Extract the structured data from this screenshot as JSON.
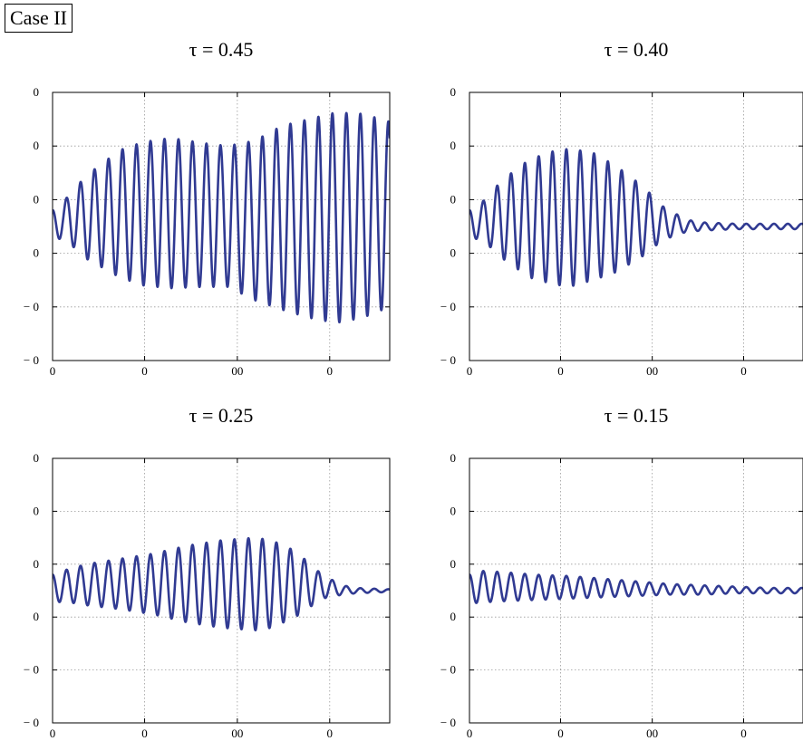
{
  "case_label": "Case II",
  "chart_data": [
    {
      "type": "line",
      "title": "τ = 0.45",
      "xlabel": "",
      "ylabel": "",
      "xticks": [
        "0",
        "0",
        "00",
        "0"
      ],
      "yticks": [
        "0",
        "0",
        "0",
        "0",
        "− 0",
        "− 0"
      ],
      "grid": true,
      "color": "#303a92",
      "xlim": [
        0,
        100
      ],
      "ylim": [
        -1,
        1
      ],
      "period": 4.15,
      "envelope": {
        "x": [
          0,
          3,
          10,
          20,
          27,
          35,
          45,
          52,
          60,
          68,
          76,
          84,
          92,
          100
        ],
        "upper": [
          0.12,
          0.18,
          0.38,
          0.57,
          0.63,
          0.66,
          0.62,
          0.6,
          0.64,
          0.75,
          0.8,
          0.85,
          0.84,
          0.78
        ],
        "lower": [
          -0.12,
          -0.08,
          -0.24,
          -0.38,
          -0.44,
          -0.46,
          -0.45,
          -0.45,
          -0.55,
          -0.62,
          -0.68,
          -0.72,
          -0.68,
          -0.6
        ]
      }
    },
    {
      "type": "line",
      "title": "τ = 0.40",
      "xlabel": "",
      "ylabel": "",
      "xticks": [
        "0",
        "0",
        "00",
        "0"
      ],
      "yticks": [
        "0",
        "0",
        "0",
        "0",
        "− 0",
        "− 0"
      ],
      "grid": true,
      "color": "#303a92",
      "xlim": [
        0,
        100
      ],
      "ylim": [
        -1,
        1
      ],
      "period": 4.15,
      "envelope": {
        "x": [
          0,
          3,
          10,
          18,
          25,
          30,
          37,
          44,
          52,
          58,
          65,
          70,
          80,
          90,
          100
        ],
        "upper": [
          0.12,
          0.16,
          0.35,
          0.5,
          0.56,
          0.58,
          0.55,
          0.45,
          0.3,
          0.15,
          0.05,
          0.03,
          0.02,
          0.02,
          0.02
        ],
        "lower": [
          -0.12,
          -0.08,
          -0.24,
          -0.38,
          -0.43,
          -0.45,
          -0.4,
          -0.34,
          -0.22,
          -0.1,
          -0.04,
          -0.03,
          -0.02,
          -0.02,
          -0.02
        ]
      }
    },
    {
      "type": "line",
      "title": "τ = 0.25",
      "xlabel": "",
      "ylabel": "",
      "xticks": [
        "0",
        "0",
        "00",
        "0"
      ],
      "yticks": [
        "0",
        "0",
        "0",
        "0",
        "− 0",
        "− 0"
      ],
      "grid": true,
      "color": "#303a92",
      "xlim": [
        0,
        100
      ],
      "ylim": [
        -1,
        1
      ],
      "period": 4.15,
      "envelope": {
        "x": [
          0,
          3,
          10,
          20,
          30,
          40,
          50,
          60,
          65,
          72,
          80,
          86,
          90,
          100
        ],
        "upper": [
          0.12,
          0.15,
          0.2,
          0.24,
          0.28,
          0.34,
          0.38,
          0.4,
          0.38,
          0.3,
          0.12,
          0.04,
          0.02,
          0.01
        ],
        "lower": [
          -0.1,
          -0.08,
          -0.11,
          -0.14,
          -0.18,
          -0.24,
          -0.28,
          -0.3,
          -0.28,
          -0.2,
          -0.06,
          -0.03,
          -0.02,
          -0.01
        ]
      }
    },
    {
      "type": "line",
      "title": "τ = 0.15",
      "xlabel": "",
      "ylabel": "",
      "xticks": [
        "0",
        "0",
        "00",
        "0"
      ],
      "yticks": [
        "0",
        "0",
        "0",
        "0",
        "− 0",
        "− 0"
      ],
      "grid": true,
      "color": "#303a92",
      "xlim": [
        0,
        100
      ],
      "ylim": [
        -1,
        1
      ],
      "period": 4.15,
      "envelope": {
        "x": [
          0,
          3,
          10,
          20,
          30,
          40,
          50,
          60,
          70,
          80,
          90,
          100
        ],
        "upper": [
          0.12,
          0.15,
          0.14,
          0.12,
          0.11,
          0.09,
          0.07,
          0.05,
          0.04,
          0.03,
          0.02,
          0.02
        ],
        "lower": [
          -0.1,
          -0.09,
          -0.08,
          -0.07,
          -0.06,
          -0.05,
          -0.04,
          -0.03,
          -0.03,
          -0.02,
          -0.02,
          -0.02
        ]
      }
    }
  ]
}
